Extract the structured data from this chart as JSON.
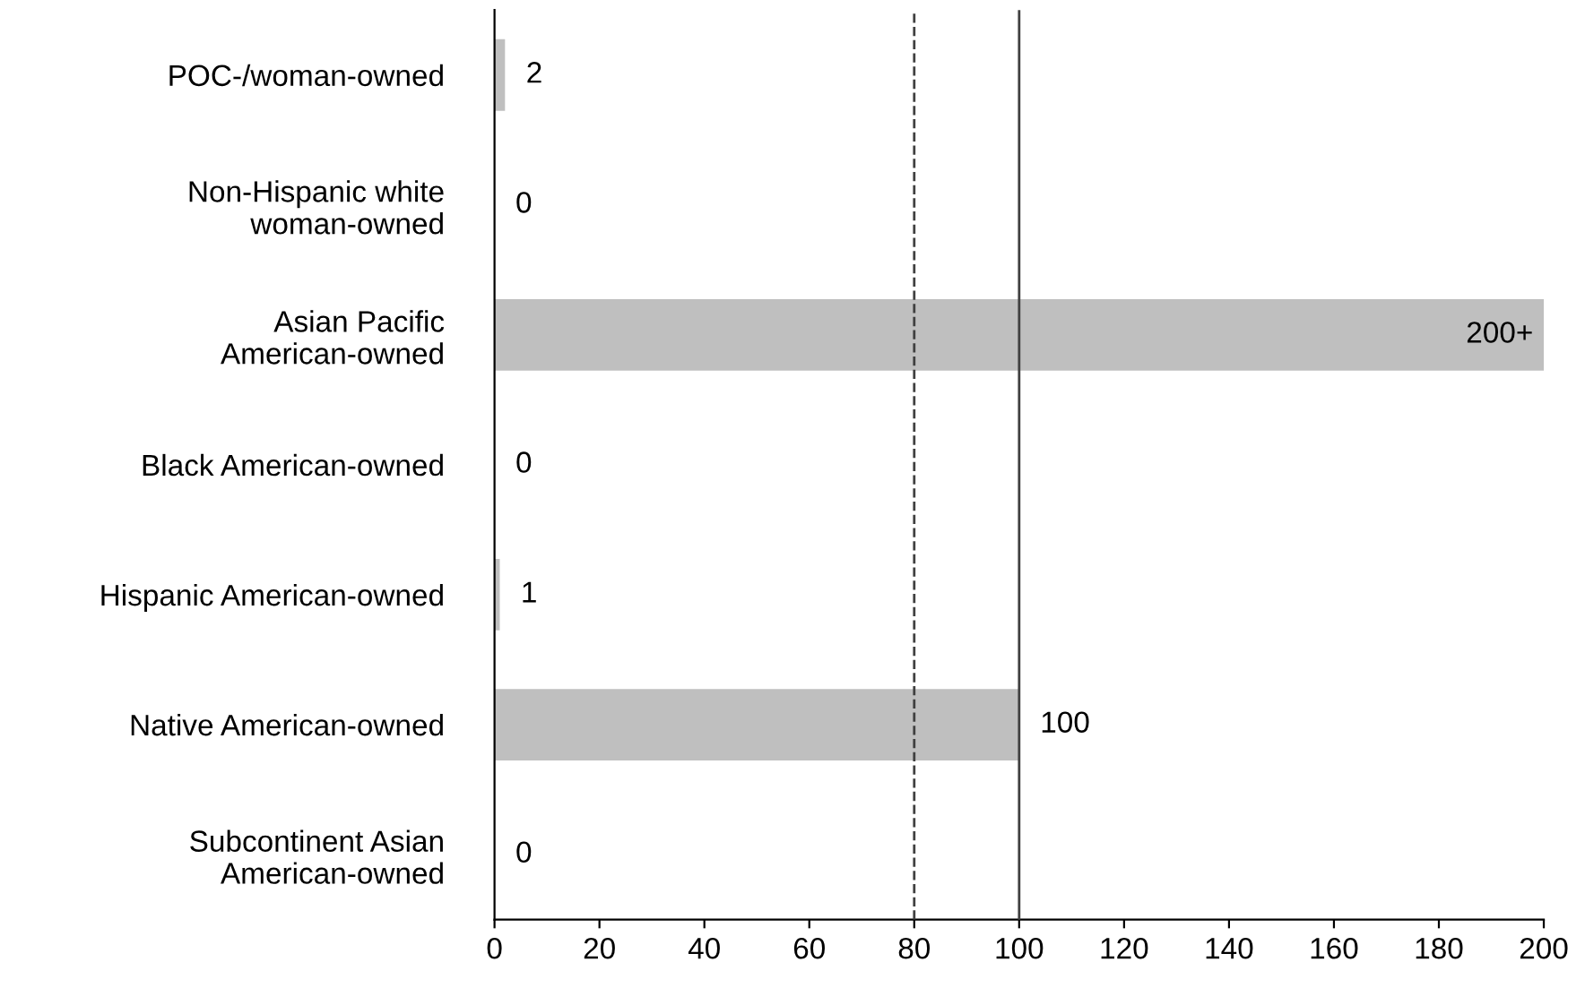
{
  "chart_data": {
    "type": "bar",
    "orientation": "horizontal",
    "categories": [
      "POC-/woman-owned",
      "Non-Hispanic white\nwoman-owned",
      "Asian Pacific\nAmerican-owned",
      "Black American-owned",
      "Hispanic American-owned",
      "Native American-owned",
      "Subcontinent Asian\nAmerican-owned"
    ],
    "values": [
      2,
      0,
      200,
      0,
      1,
      100,
      0
    ],
    "value_labels": [
      "2",
      "0",
      "200+",
      "0",
      "1",
      "100",
      "0"
    ],
    "color": "#bfbfbf",
    "xlim": [
      0,
      200
    ],
    "xticks": [
      0,
      20,
      40,
      60,
      80,
      100,
      120,
      140,
      160,
      180,
      200
    ],
    "ref_lines": [
      {
        "axis": "x",
        "value": 80,
        "line_style": "dashed",
        "color": "#404040"
      },
      {
        "axis": "x",
        "value": 100,
        "line_style": "solid",
        "color": "#404040"
      }
    ],
    "grid": false,
    "legend": false
  }
}
